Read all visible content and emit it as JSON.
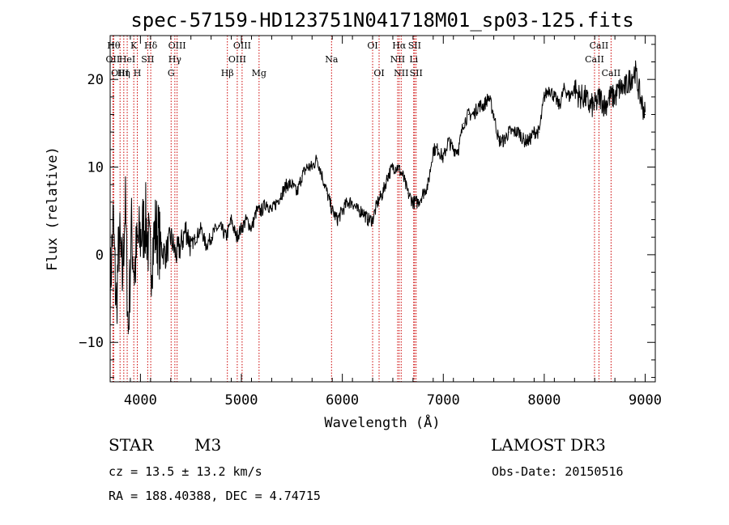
{
  "chart_data": {
    "type": "line",
    "title": "spec-57159-HD123751N041718M01_sp03-125.fits",
    "xlabel": "Wavelength (Å)",
    "ylabel": "Flux (relative)",
    "xlim": [
      3700,
      9100
    ],
    "ylim": [
      -14.5,
      25
    ],
    "xticks": [
      4000,
      5000,
      6000,
      7000,
      8000,
      9000
    ],
    "yticks": [
      -10,
      0,
      10,
      20
    ],
    "series": [
      {
        "name": "spectrum",
        "x": [
          3700,
          3730,
          3760,
          3790,
          3820,
          3850,
          3880,
          3910,
          3940,
          3970,
          4000,
          4050,
          4100,
          4150,
          4200,
          4250,
          4300,
          4350,
          4400,
          4450,
          4500,
          4550,
          4600,
          4650,
          4700,
          4750,
          4800,
          4850,
          4900,
          4950,
          5000,
          5050,
          5100,
          5150,
          5200,
          5250,
          5300,
          5350,
          5400,
          5450,
          5500,
          5550,
          5600,
          5650,
          5700,
          5750,
          5800,
          5850,
          5900,
          5950,
          6000,
          6050,
          6100,
          6150,
          6200,
          6250,
          6300,
          6350,
          6400,
          6450,
          6500,
          6550,
          6600,
          6650,
          6700,
          6750,
          6800,
          6850,
          6900,
          6950,
          7000,
          7050,
          7100,
          7150,
          7200,
          7250,
          7300,
          7350,
          7400,
          7450,
          7500,
          7550,
          7600,
          7650,
          7700,
          7750,
          7800,
          7850,
          7900,
          7950,
          8000,
          8050,
          8100,
          8150,
          8200,
          8250,
          8300,
          8350,
          8400,
          8450,
          8500,
          8550,
          8600,
          8650,
          8700,
          8750,
          8800,
          8850,
          8900,
          8950,
          9000
        ],
        "y": [
          -4,
          4,
          -6,
          2,
          -3,
          6,
          -9,
          3,
          -2,
          1,
          2,
          4,
          -1,
          3,
          1,
          0,
          2,
          0,
          1,
          3,
          1,
          2,
          3,
          1,
          2,
          3,
          3,
          2,
          4,
          2,
          3,
          4,
          3,
          5,
          5,
          6,
          5,
          6,
          7,
          8,
          8,
          7,
          9,
          10,
          10,
          11,
          9,
          7,
          5,
          4,
          5,
          6,
          6,
          5,
          5,
          4,
          4,
          6,
          7,
          9,
          10,
          10,
          9,
          7,
          6,
          6,
          7,
          8,
          12,
          12,
          11,
          13,
          12,
          12,
          15,
          16,
          16,
          17,
          17,
          18,
          16,
          13,
          13,
          14,
          14,
          14,
          13,
          13,
          14,
          14,
          18,
          19,
          18,
          17,
          19,
          18,
          19,
          18,
          18,
          17,
          17,
          18,
          17,
          18,
          18,
          19,
          19,
          20,
          21,
          18,
          16
        ]
      }
    ],
    "lines": [
      {
        "w": 3735,
        "name": "Hθ",
        "row": 1
      },
      {
        "w": 3727,
        "name": "OII",
        "row": 2
      },
      {
        "w": 3798,
        "name": "OIII",
        "row": 3
      },
      {
        "w": 3835,
        "name": "Hη",
        "row": 3
      },
      {
        "w": 3869,
        "name": "HeI",
        "row": 2
      },
      {
        "w": 3934,
        "name": "K",
        "row": 1
      },
      {
        "w": 3969,
        "name": "H",
        "row": 3
      },
      {
        "w": 4072,
        "name": "SII",
        "row": 2
      },
      {
        "w": 4102,
        "name": "Hδ",
        "row": 1
      },
      {
        "w": 4304,
        "name": "G",
        "row": 3
      },
      {
        "w": 4341,
        "name": "Hγ",
        "row": 2
      },
      {
        "w": 4363,
        "name": "OIII",
        "row": 1
      },
      {
        "w": 4861,
        "name": "Hβ",
        "row": 3
      },
      {
        "w": 4959,
        "name": "OIII",
        "row": 2
      },
      {
        "w": 5007,
        "name": "OIII",
        "row": 1
      },
      {
        "w": 5175,
        "name": "Mg",
        "row": 3
      },
      {
        "w": 5893,
        "name": "Na",
        "row": 2
      },
      {
        "w": 6300,
        "name": "OI",
        "row": 1
      },
      {
        "w": 6364,
        "name": "OI",
        "row": 3
      },
      {
        "w": 6548,
        "name": "NII",
        "row": 2
      },
      {
        "w": 6563,
        "name": "Hα",
        "row": 1
      },
      {
        "w": 6583,
        "name": "NII",
        "row": 3
      },
      {
        "w": 6707,
        "name": "Li",
        "row": 2
      },
      {
        "w": 6716,
        "name": "SII",
        "row": 1
      },
      {
        "w": 6731,
        "name": "SII",
        "row": 3
      },
      {
        "w": 8498,
        "name": "CaII",
        "row": 2
      },
      {
        "w": 8542,
        "name": "CaII",
        "row": 1
      },
      {
        "w": 8662,
        "name": "CaII",
        "row": 3
      }
    ]
  },
  "info": {
    "object_type": "STAR",
    "subclass": "M3",
    "survey": "LAMOST DR3",
    "cz": "cz = 13.5 ± 13.2 km/s",
    "obs_date": "Obs-Date: 20150516",
    "radec": "RA = 188.40388, DEC =   4.74715"
  },
  "colors": {
    "spectrum": "#000000",
    "line_marker": "#cc0000",
    "background": "#ffffff"
  }
}
